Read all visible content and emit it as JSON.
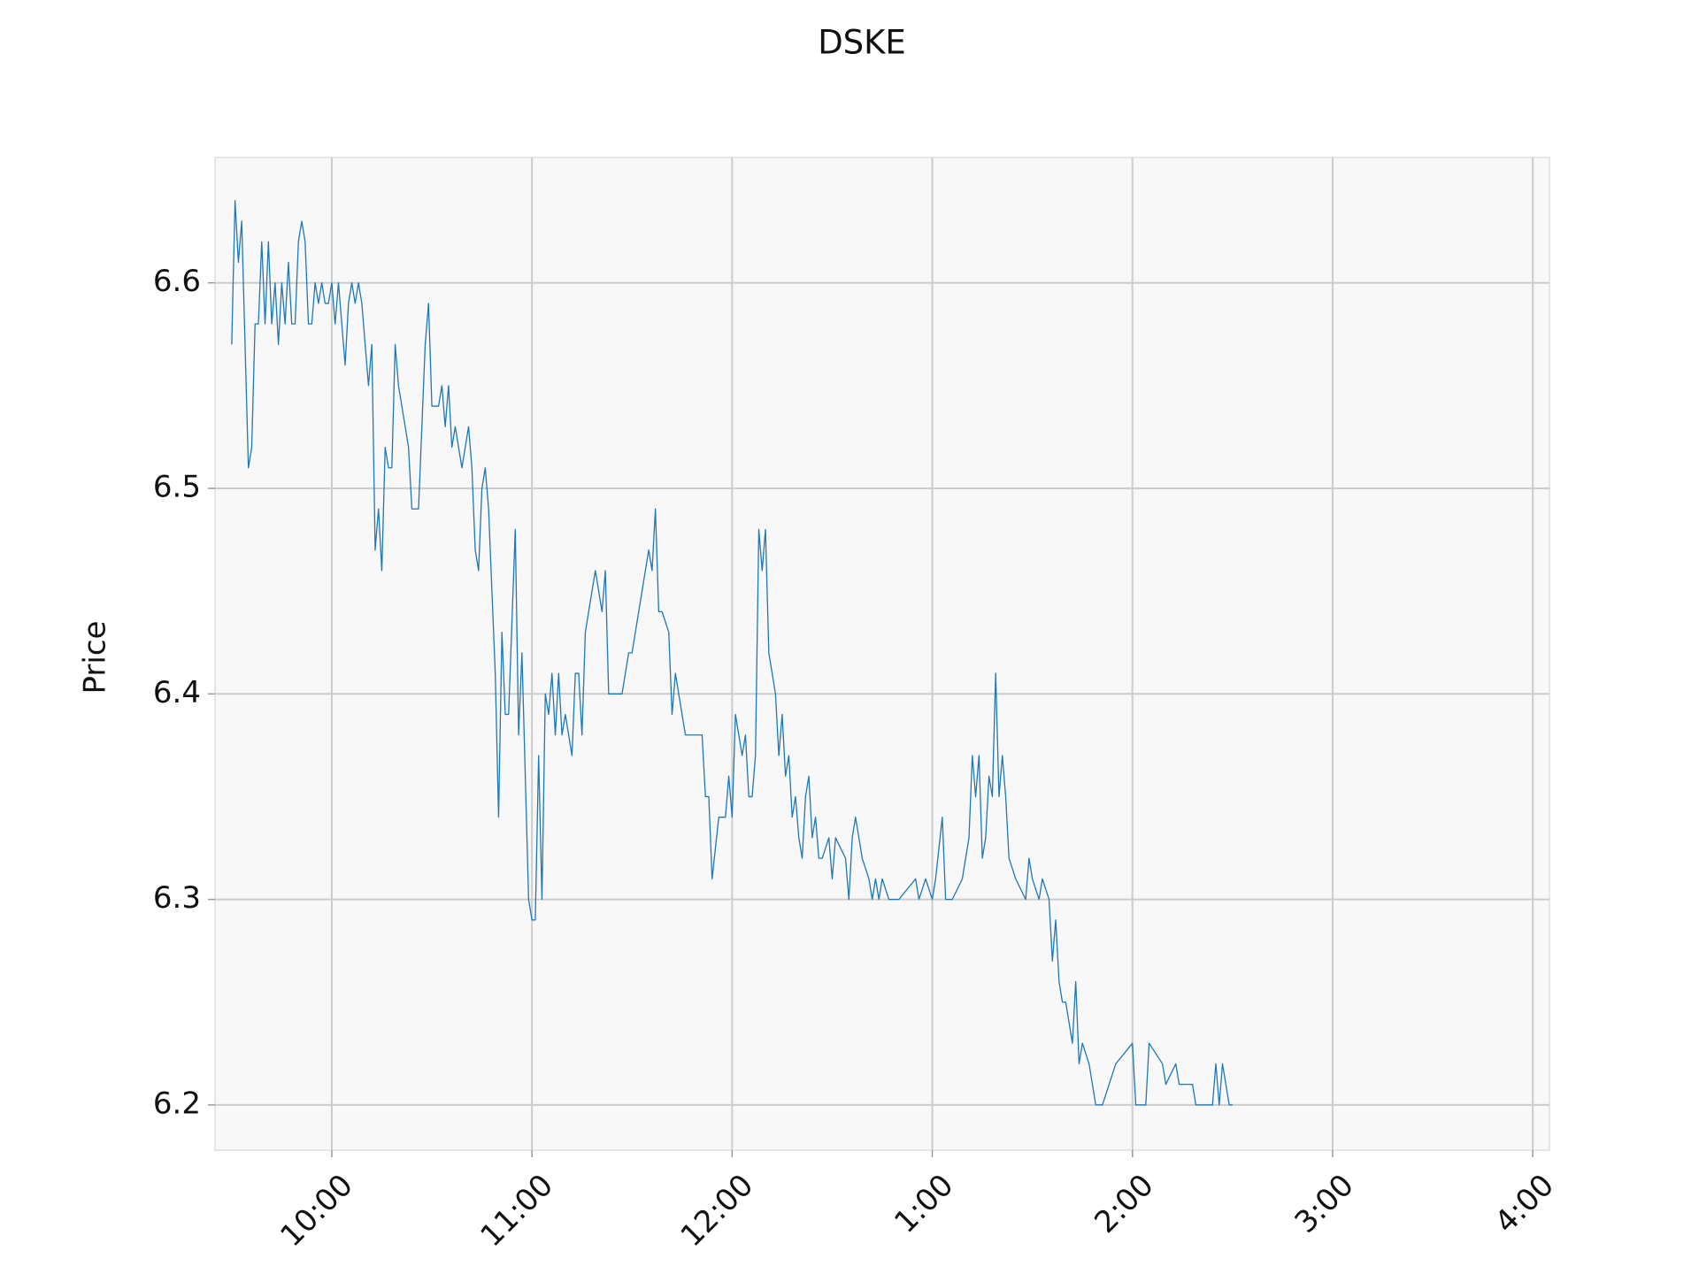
{
  "chart_data": {
    "type": "line",
    "title": "DSKE",
    "y_label": "Price",
    "color": "#1f77b4",
    "grid": true,
    "x": [
      570,
      571,
      572,
      573,
      574,
      575,
      576,
      577,
      578,
      579,
      580,
      581,
      582,
      583,
      584,
      585,
      586,
      587,
      588,
      589,
      590,
      591,
      592,
      593,
      594,
      595,
      596,
      597,
      598,
      599,
      600,
      601,
      602,
      603,
      604,
      605,
      606,
      607,
      608,
      609,
      610,
      611,
      612,
      613,
      614,
      615,
      616,
      617,
      618,
      619,
      620,
      622,
      623,
      624,
      626,
      628,
      629,
      630,
      632,
      633,
      634,
      635,
      636,
      637,
      639,
      641,
      642,
      643,
      644,
      645,
      646,
      647,
      648,
      649,
      650,
      651,
      652,
      653,
      655,
      656,
      657,
      659,
      660,
      661,
      662,
      663,
      664,
      665,
      666,
      667,
      668,
      669,
      670,
      672,
      673,
      674,
      675,
      676,
      678,
      679,
      681,
      682,
      683,
      687,
      689,
      690,
      693,
      695,
      696,
      697,
      698,
      699,
      701,
      702,
      703,
      706,
      711,
      712,
      713,
      714,
      716,
      718,
      719,
      720,
      721,
      722,
      723,
      724,
      725,
      726,
      727,
      728,
      729,
      730,
      731,
      733,
      734,
      735,
      736,
      737,
      738,
      739,
      740,
      741,
      742,
      743,
      744,
      745,
      746,
      747,
      749,
      750,
      751,
      754,
      755,
      756,
      757,
      759,
      761,
      762,
      763,
      764,
      765,
      767,
      770,
      775,
      776,
      778,
      780,
      781,
      783,
      784,
      786,
      789,
      791,
      792,
      793,
      794,
      795,
      796,
      797,
      798,
      799,
      800,
      801,
      802,
      803,
      805,
      808,
      809,
      810,
      812,
      813,
      815,
      816,
      817,
      818,
      819,
      820,
      822,
      823,
      824,
      825,
      827,
      829,
      831,
      835,
      840,
      841,
      844,
      845,
      849,
      850,
      853,
      854,
      858,
      859,
      864,
      865,
      866,
      867,
      869,
      870
    ],
    "values": [
      6.57,
      6.64,
      6.61,
      6.63,
      6.57,
      6.51,
      6.52,
      6.58,
      6.58,
      6.62,
      6.58,
      6.62,
      6.58,
      6.6,
      6.57,
      6.6,
      6.58,
      6.61,
      6.58,
      6.58,
      6.62,
      6.63,
      6.62,
      6.58,
      6.58,
      6.6,
      6.59,
      6.6,
      6.59,
      6.59,
      6.6,
      6.58,
      6.6,
      6.58,
      6.56,
      6.59,
      6.6,
      6.59,
      6.6,
      6.59,
      6.57,
      6.55,
      6.57,
      6.47,
      6.49,
      6.46,
      6.52,
      6.51,
      6.51,
      6.57,
      6.55,
      6.53,
      6.52,
      6.49,
      6.49,
      6.57,
      6.59,
      6.54,
      6.54,
      6.55,
      6.53,
      6.55,
      6.52,
      6.53,
      6.51,
      6.53,
      6.51,
      6.47,
      6.46,
      6.5,
      6.51,
      6.49,
      6.45,
      6.41,
      6.34,
      6.43,
      6.39,
      6.39,
      6.48,
      6.38,
      6.42,
      6.3,
      6.29,
      6.29,
      6.37,
      6.3,
      6.4,
      6.39,
      6.41,
      6.38,
      6.41,
      6.38,
      6.39,
      6.37,
      6.41,
      6.41,
      6.38,
      6.43,
      6.45,
      6.46,
      6.44,
      6.46,
      6.4,
      6.4,
      6.42,
      6.42,
      6.45,
      6.47,
      6.46,
      6.49,
      6.44,
      6.44,
      6.43,
      6.39,
      6.41,
      6.38,
      6.38,
      6.35,
      6.35,
      6.31,
      6.34,
      6.34,
      6.36,
      6.34,
      6.39,
      6.38,
      6.37,
      6.38,
      6.35,
      6.35,
      6.37,
      6.48,
      6.46,
      6.48,
      6.42,
      6.4,
      6.37,
      6.39,
      6.36,
      6.37,
      6.34,
      6.35,
      6.33,
      6.32,
      6.35,
      6.36,
      6.33,
      6.34,
      6.32,
      6.32,
      6.33,
      6.31,
      6.33,
      6.32,
      6.3,
      6.33,
      6.34,
      6.32,
      6.31,
      6.3,
      6.31,
      6.3,
      6.31,
      6.3,
      6.3,
      6.31,
      6.3,
      6.31,
      6.3,
      6.31,
      6.34,
      6.3,
      6.3,
      6.31,
      6.33,
      6.37,
      6.35,
      6.37,
      6.32,
      6.33,
      6.36,
      6.35,
      6.41,
      6.35,
      6.37,
      6.35,
      6.32,
      6.31,
      6.3,
      6.32,
      6.31,
      6.3,
      6.31,
      6.3,
      6.27,
      6.29,
      6.26,
      6.25,
      6.25,
      6.23,
      6.26,
      6.22,
      6.23,
      6.22,
      6.2,
      6.2,
      6.22,
      6.23,
      6.2,
      6.2,
      6.23,
      6.22,
      6.21,
      6.22,
      6.21,
      6.21,
      6.2,
      6.2,
      6.22,
      6.2,
      6.22,
      6.2,
      6.2
    ],
    "xlim": [
      565,
      965
    ],
    "xticks": [
      {
        "value": 600,
        "label": "10:00"
      },
      {
        "value": 660,
        "label": "11:00"
      },
      {
        "value": 720,
        "label": "12:00"
      },
      {
        "value": 780,
        "label": "1:00"
      },
      {
        "value": 840,
        "label": "2:00"
      },
      {
        "value": 900,
        "label": "3:00"
      },
      {
        "value": 960,
        "label": "4:00"
      }
    ],
    "ylim": [
      6.178,
      6.661
    ],
    "yticks": [
      6.2,
      6.3,
      6.4,
      6.5,
      6.6
    ]
  }
}
